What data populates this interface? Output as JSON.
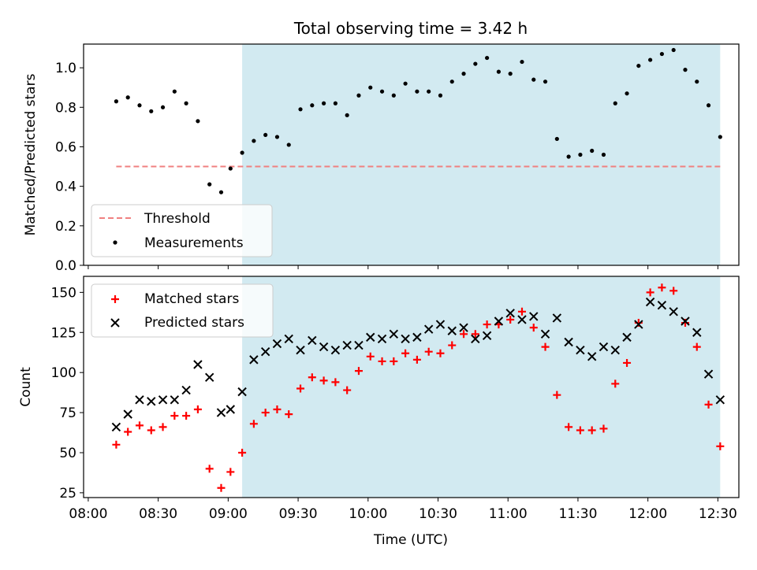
{
  "title": "Total observing time = 3.42 h",
  "colors": {
    "shade": "#add8e6",
    "threshold": "#f08080",
    "measurement": "#000000",
    "matched": "#ff0000",
    "predicted": "#000000"
  },
  "chart_data": [
    {
      "type": "scatter",
      "title": "Total observing time = 3.42 h",
      "ylabel": "Matched/Predicted stars",
      "ylim": [
        0.0,
        1.12
      ],
      "yticks": [
        "0.0",
        "0.2",
        "0.4",
        "0.6",
        "0.8",
        "1.0"
      ],
      "xlim": [
        "07:58",
        "12:39"
      ],
      "shaded_span": [
        "09:06",
        "12:31"
      ],
      "legend": {
        "position": "lower-left",
        "entries": [
          "Threshold",
          "Measurements"
        ]
      },
      "threshold": {
        "name": "Threshold",
        "y": 0.5,
        "x": [
          "08:12",
          "12:31"
        ]
      },
      "series": [
        {
          "name": "Measurements",
          "x": [
            "08:12",
            "08:17",
            "08:22",
            "08:27",
            "08:32",
            "08:37",
            "08:42",
            "08:47",
            "08:52",
            "08:57",
            "09:01",
            "09:06",
            "09:11",
            "09:16",
            "09:21",
            "09:26",
            "09:31",
            "09:36",
            "09:41",
            "09:46",
            "09:51",
            "09:56",
            "10:01",
            "10:06",
            "10:11",
            "10:16",
            "10:21",
            "10:26",
            "10:31",
            "10:36",
            "10:41",
            "10:46",
            "10:51",
            "10:56",
            "11:01",
            "11:06",
            "11:11",
            "11:16",
            "11:21",
            "11:26",
            "11:31",
            "11:36",
            "11:41",
            "11:46",
            "11:51",
            "11:56",
            "12:01",
            "12:06",
            "12:11",
            "12:16",
            "12:21",
            "12:26",
            "12:31"
          ],
          "y": [
            0.83,
            0.85,
            0.81,
            0.78,
            0.8,
            0.88,
            0.82,
            0.73,
            0.41,
            0.37,
            0.49,
            0.57,
            0.63,
            0.66,
            0.65,
            0.61,
            0.79,
            0.81,
            0.82,
            0.82,
            0.76,
            0.86,
            0.9,
            0.88,
            0.86,
            0.92,
            0.88,
            0.88,
            0.86,
            0.93,
            0.97,
            1.02,
            1.05,
            0.98,
            0.97,
            1.03,
            0.94,
            0.93,
            0.64,
            0.55,
            0.56,
            0.58,
            0.56,
            0.82,
            0.87,
            1.01,
            1.04,
            1.07,
            1.09,
            0.99,
            0.93,
            0.81,
            0.65
          ]
        }
      ]
    },
    {
      "type": "scatter",
      "ylabel": "Count",
      "xlabel": "Time (UTC)",
      "ylim": [
        22,
        160
      ],
      "yticks": [
        "25",
        "50",
        "75",
        "100",
        "125",
        "150"
      ],
      "xlim": [
        "07:58",
        "12:39"
      ],
      "xticks": [
        "08:00",
        "08:30",
        "09:00",
        "09:30",
        "10:00",
        "10:30",
        "11:00",
        "11:30",
        "12:00",
        "12:30"
      ],
      "shaded_span": [
        "09:06",
        "12:31"
      ],
      "legend": {
        "position": "upper-left",
        "entries": [
          "Matched stars",
          "Predicted stars"
        ]
      },
      "series": [
        {
          "name": "Matched stars",
          "x": [
            "08:12",
            "08:17",
            "08:22",
            "08:27",
            "08:32",
            "08:37",
            "08:42",
            "08:47",
            "08:52",
            "08:57",
            "09:01",
            "09:06",
            "09:11",
            "09:16",
            "09:21",
            "09:26",
            "09:31",
            "09:36",
            "09:41",
            "09:46",
            "09:51",
            "09:56",
            "10:01",
            "10:06",
            "10:11",
            "10:16",
            "10:21",
            "10:26",
            "10:31",
            "10:36",
            "10:41",
            "10:46",
            "10:51",
            "10:56",
            "11:01",
            "11:06",
            "11:11",
            "11:16",
            "11:21",
            "11:26",
            "11:31",
            "11:36",
            "11:41",
            "11:46",
            "11:51",
            "11:56",
            "12:01",
            "12:06",
            "12:11",
            "12:16",
            "12:21",
            "12:26",
            "12:31"
          ],
          "y": [
            55,
            63,
            67,
            64,
            66,
            73,
            73,
            77,
            40,
            28,
            38,
            50,
            68,
            75,
            77,
            74,
            90,
            97,
            95,
            94,
            89,
            101,
            110,
            107,
            107,
            112,
            108,
            113,
            112,
            117,
            124,
            124,
            130,
            130,
            133,
            138,
            128,
            116,
            86,
            66,
            64,
            64,
            65,
            93,
            106,
            131,
            150,
            153,
            151,
            131,
            116,
            80,
            54
          ]
        },
        {
          "name": "Predicted stars",
          "x": [
            "08:12",
            "08:17",
            "08:22",
            "08:27",
            "08:32",
            "08:37",
            "08:42",
            "08:47",
            "08:52",
            "08:57",
            "09:01",
            "09:06",
            "09:11",
            "09:16",
            "09:21",
            "09:26",
            "09:31",
            "09:36",
            "09:41",
            "09:46",
            "09:51",
            "09:56",
            "10:01",
            "10:06",
            "10:11",
            "10:16",
            "10:21",
            "10:26",
            "10:31",
            "10:36",
            "10:41",
            "10:46",
            "10:51",
            "10:56",
            "11:01",
            "11:06",
            "11:11",
            "11:16",
            "11:21",
            "11:26",
            "11:31",
            "11:36",
            "11:41",
            "11:46",
            "11:51",
            "11:56",
            "12:01",
            "12:06",
            "12:11",
            "12:16",
            "12:21",
            "12:26",
            "12:31"
          ],
          "y": [
            66,
            74,
            83,
            82,
            83,
            83,
            89,
            105,
            97,
            75,
            77,
            88,
            108,
            113,
            118,
            121,
            114,
            120,
            116,
            114,
            117,
            117,
            122,
            121,
            124,
            121,
            122,
            127,
            130,
            126,
            128,
            121,
            123,
            132,
            137,
            133,
            135,
            124,
            134,
            119,
            114,
            110,
            116,
            114,
            122,
            130,
            144,
            142,
            138,
            132,
            125,
            99,
            83
          ]
        }
      ]
    }
  ]
}
